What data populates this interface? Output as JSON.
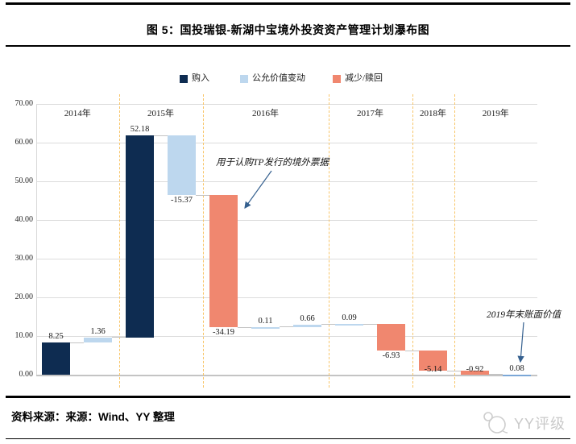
{
  "header": {
    "title": "图 5：国投瑞银-新湖中宝境外投资资产管理计划瀑布图"
  },
  "footer": {
    "source_note": "资料来源：来源：Wind、YY 整理",
    "watermark": "YY评级"
  },
  "colors": {
    "purchase": "#0e2c51",
    "fair_value_change": "#bdd7ee",
    "redeem": "#f0876f",
    "ending_value": "#7ba7d7",
    "separator": "#f8c568",
    "gridline": "#dcdcdc",
    "annotation_arrow": "#35608f"
  },
  "chart_data": {
    "type": "bar",
    "subtype": "waterfall",
    "title": "图 5：国投瑞银-新湖中宝境外投资资产管理计划瀑布图",
    "xlabel": "",
    "ylabel": "",
    "ylim": [
      0,
      70
    ],
    "ytick_step": 10,
    "ytick_format": "2dp",
    "grid": true,
    "legend_position": "top",
    "legend": [
      {
        "label": "购入",
        "color_key": "purchase"
      },
      {
        "label": "公允价值变动",
        "color_key": "fair_value_change"
      },
      {
        "label": "减少/赎回",
        "color_key": "redeem"
      }
    ],
    "year_groups": [
      {
        "label": "2014年",
        "bar_count": 2
      },
      {
        "label": "2015年",
        "bar_count": 2
      },
      {
        "label": "2016年",
        "bar_count": 3
      },
      {
        "label": "2017年",
        "bar_count": 2
      },
      {
        "label": "2018年",
        "bar_count": 1
      },
      {
        "label": "2019年",
        "bar_count": 2
      }
    ],
    "bars": [
      {
        "group": "2014年",
        "series": "购入",
        "value": 8.25,
        "start": 0,
        "end": 8.25,
        "label": "8.25",
        "label_side": "above",
        "color_key": "purchase"
      },
      {
        "group": "2014年",
        "series": "公允价值变动",
        "value": 1.36,
        "start": 8.25,
        "end": 9.61,
        "label": "1.36",
        "label_side": "above",
        "color_key": "fair_value_change"
      },
      {
        "group": "2015年",
        "series": "购入",
        "value": 52.18,
        "start": 9.61,
        "end": 61.79,
        "label": "52.18",
        "label_side": "above",
        "color_key": "purchase"
      },
      {
        "group": "2015年",
        "series": "公允价值变动",
        "value": -15.37,
        "start": 61.79,
        "end": 46.42,
        "label": "-15.37",
        "label_side": "below",
        "color_key": "fair_value_change"
      },
      {
        "group": "2016年",
        "series": "减少/赎回",
        "value": -34.19,
        "start": 46.42,
        "end": 12.23,
        "label": "-34.19",
        "label_side": "below",
        "color_key": "redeem"
      },
      {
        "group": "2016年",
        "series": "公允价值变动",
        "value": 0.11,
        "start": 12.23,
        "end": 12.34,
        "label": "0.11",
        "label_side": "above",
        "color_key": "fair_value_change"
      },
      {
        "group": "2016年",
        "series": "公允价值变动",
        "value": 0.66,
        "start": 12.34,
        "end": 13.0,
        "label": "0.66",
        "label_side": "above",
        "color_key": "fair_value_change"
      },
      {
        "group": "2017年",
        "series": "公允价值变动",
        "value": 0.09,
        "start": 13.0,
        "end": 13.09,
        "label": "0.09",
        "label_side": "above",
        "color_key": "fair_value_change"
      },
      {
        "group": "2017年",
        "series": "减少/赎回",
        "value": -6.93,
        "start": 13.09,
        "end": 6.16,
        "label": "-6.93",
        "label_side": "below",
        "color_key": "redeem"
      },
      {
        "group": "2018年",
        "series": "减少/赎回",
        "value": -5.14,
        "start": 6.16,
        "end": 1.02,
        "label": "-5.14",
        "label_side": "below",
        "color_key": "redeem"
      },
      {
        "group": "2019年",
        "series": "减少/赎回",
        "value": -0.92,
        "start": 1.02,
        "end": 0.1,
        "label": "-0.92",
        "label_side": "below",
        "color_key": "redeem"
      },
      {
        "group": "2019年",
        "series": "期末账面价值",
        "value": 0.08,
        "start": 0,
        "end": 0.08,
        "label": "0.08",
        "label_side": "above",
        "color_key": "ending_value"
      }
    ],
    "annotations": [
      {
        "text": "用于认购TP发行的境外票据",
        "target": "2016年 减少/赎回 -34.19"
      },
      {
        "text": "2019年末账面价值",
        "target": "2019年 期末 0.08"
      }
    ]
  }
}
